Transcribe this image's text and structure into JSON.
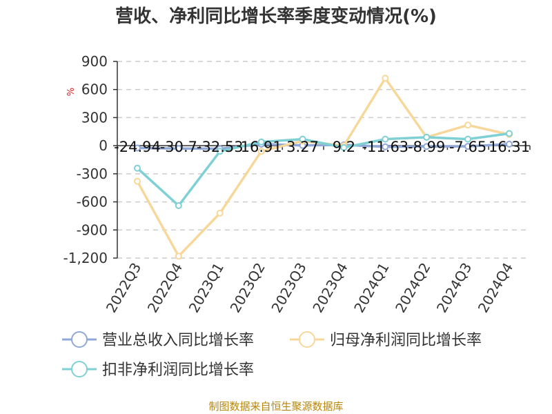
{
  "chart_data": {
    "type": "line",
    "title": "营收、净利同比增长率季度变动情况(%)",
    "unit_label": "%",
    "categories": [
      "2022Q3",
      "2022Q4",
      "2023Q1",
      "2023Q2",
      "2023Q3",
      "2023Q4",
      "2024Q1",
      "2024Q2",
      "2024Q3",
      "2024Q4"
    ],
    "ylim": [
      -1200,
      900
    ],
    "yticks": [
      900,
      600,
      300,
      0,
      -300,
      -600,
      -900,
      -1200
    ],
    "ytick_labels": [
      "900",
      "600",
      "300",
      "0",
      "-300",
      "-600",
      "-900",
      "-1,200"
    ],
    "grid": true,
    "legend_placement": "bottom",
    "series": [
      {
        "name": "营业总收入同比增长率",
        "color": "#8fa8d8",
        "values": [
          -24.94,
          -30.7,
          -32.53,
          16.91,
          3.27,
          9.2,
          -11.63,
          -8.99,
          -7.65,
          16.31
        ],
        "labels": [
          "-24.94",
          "-30.7",
          "-32.53",
          "16.91",
          "3.27",
          "9.2",
          "-11.63",
          "-8.99",
          "-7.65",
          "16.31"
        ]
      },
      {
        "name": "归母净利润同比增长率",
        "color": "#f7d79a",
        "values": [
          -380,
          -1180,
          -720,
          -60,
          50,
          0,
          720,
          90,
          220,
          120
        ]
      },
      {
        "name": "扣非净利润同比增长率",
        "color": "#7fd0d4",
        "values": [
          -240,
          -640,
          -60,
          40,
          70,
          -20,
          70,
          90,
          70,
          130
        ]
      }
    ]
  },
  "footer": {
    "source": "制图数据来自恒生聚源数据库"
  }
}
